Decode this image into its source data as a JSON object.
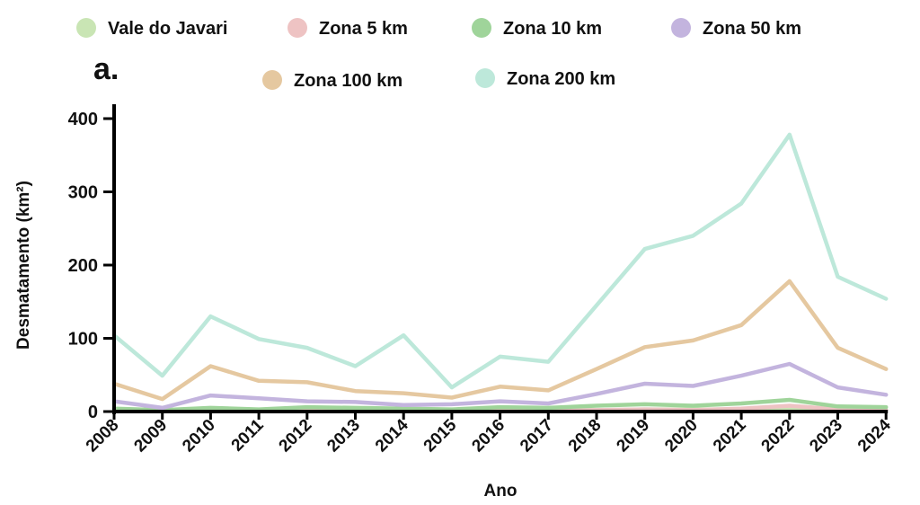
{
  "chart_data": {
    "type": "line",
    "panel_label": "a.",
    "xlabel": "Ano",
    "ylabel": "Desmatamento (km²)",
    "ylim": [
      0,
      420
    ],
    "yticks": [
      0,
      100,
      200,
      300,
      400
    ],
    "grid": false,
    "legend_position": "top",
    "x": [
      "2008",
      "2009",
      "2010",
      "2011",
      "2012",
      "2013",
      "2014",
      "2015",
      "2016",
      "2017",
      "2018",
      "2019",
      "2020",
      "2021",
      "2022",
      "2023",
      "2024"
    ],
    "series": [
      {
        "name": "Vale do Javari",
        "color": "#c9e5b4",
        "values": [
          3,
          1,
          2,
          1,
          2,
          2,
          2,
          1,
          2,
          2,
          2,
          3,
          3,
          3,
          4,
          2,
          2
        ]
      },
      {
        "name": "Zona 5 km",
        "color": "#eec3c3",
        "values": [
          1,
          1,
          1,
          1,
          1,
          1,
          1,
          1,
          1,
          1,
          2,
          3,
          2,
          4,
          8,
          3,
          2
        ]
      },
      {
        "name": "Zona 10 km",
        "color": "#9fd49a",
        "values": [
          4,
          2,
          5,
          3,
          6,
          5,
          4,
          3,
          6,
          5,
          8,
          10,
          8,
          11,
          16,
          7,
          6
        ]
      },
      {
        "name": "Zona 50 km",
        "color": "#c3b4de",
        "values": [
          14,
          5,
          22,
          18,
          14,
          13,
          9,
          10,
          14,
          11,
          24,
          38,
          35,
          49,
          65,
          33,
          23
        ]
      },
      {
        "name": "Zona 100 km",
        "color": "#e5c8a0",
        "values": [
          38,
          17,
          62,
          42,
          40,
          28,
          25,
          19,
          34,
          29,
          58,
          88,
          97,
          118,
          178,
          87,
          58
        ]
      },
      {
        "name": "Zona 200 km",
        "color": "#bde8da",
        "values": [
          104,
          49,
          130,
          99,
          87,
          62,
          104,
          33,
          75,
          68,
          145,
          222,
          240,
          284,
          378,
          184,
          154
        ]
      }
    ]
  }
}
